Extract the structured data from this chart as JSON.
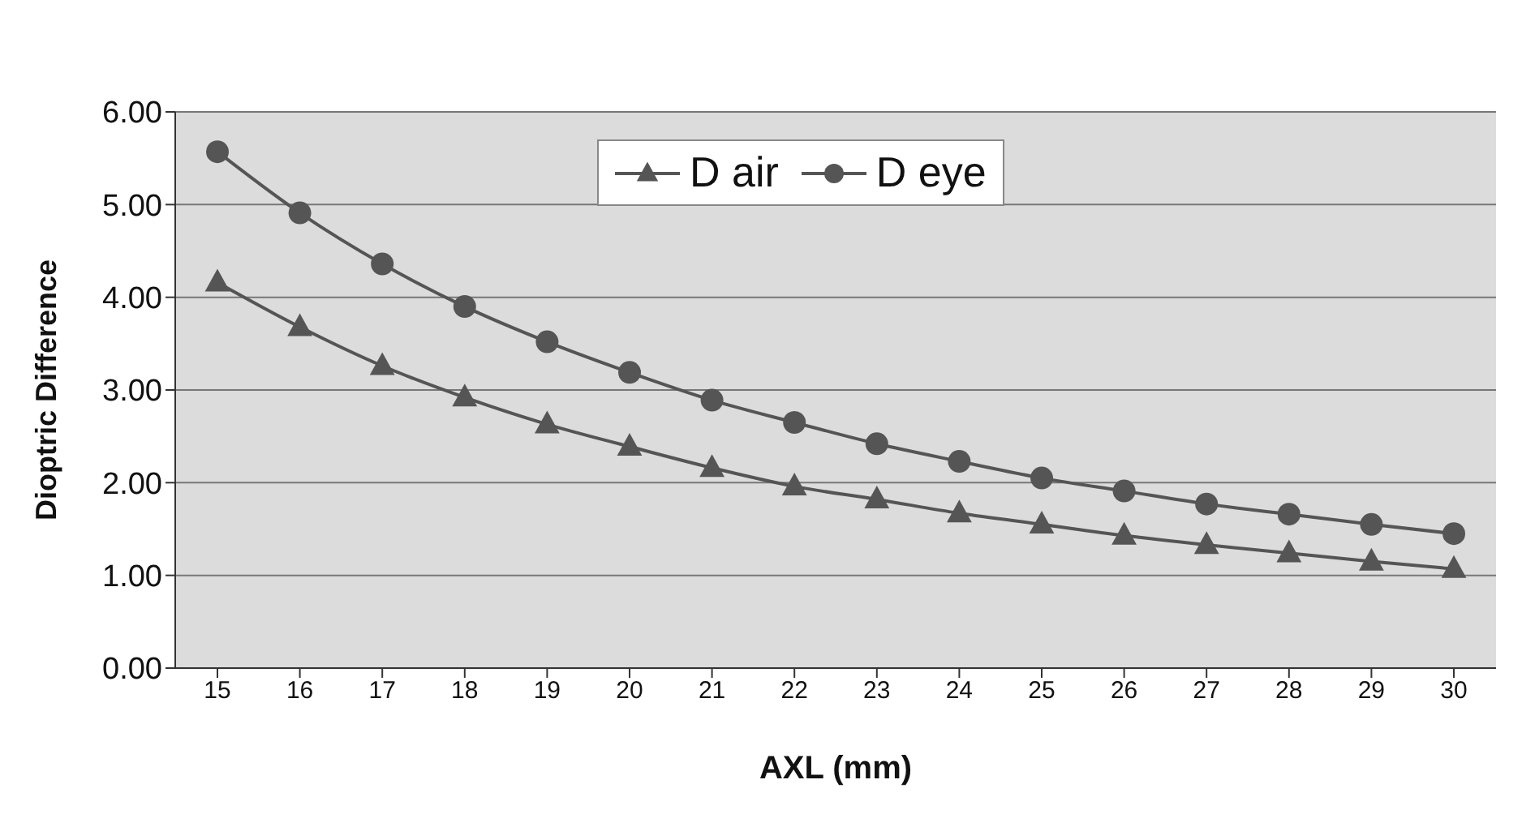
{
  "chart_data": {
    "type": "line",
    "xlabel": "AXL (mm)",
    "ylabel": "Dioptric Difference",
    "categories": [
      "15",
      "16",
      "17",
      "18",
      "19",
      "20",
      "21",
      "22",
      "23",
      "24",
      "25",
      "26",
      "27",
      "28",
      "29",
      "30"
    ],
    "series": [
      {
        "name": "D air",
        "color": "#555555",
        "marker": "triangle",
        "values": [
          4.16,
          3.68,
          3.26,
          2.92,
          2.63,
          2.39,
          2.16,
          1.96,
          1.82,
          1.67,
          1.55,
          1.43,
          1.33,
          1.24,
          1.15,
          1.07
        ]
      },
      {
        "name": "D eye",
        "color": "#555555",
        "marker": "circle",
        "values": [
          5.57,
          4.91,
          4.36,
          3.9,
          3.52,
          3.19,
          2.89,
          2.65,
          2.42,
          2.23,
          2.05,
          1.91,
          1.77,
          1.66,
          1.55,
          1.45
        ]
      }
    ],
    "ylim": [
      0,
      6
    ],
    "yticks": [
      {
        "value": 0,
        "label": "0.00"
      },
      {
        "value": 1,
        "label": "1.00"
      },
      {
        "value": 2,
        "label": "2.00"
      },
      {
        "value": 3,
        "label": "3.00"
      },
      {
        "value": 4,
        "label": "4.00"
      },
      {
        "value": 5,
        "label": "5.00"
      },
      {
        "value": 6,
        "label": "6.00"
      }
    ],
    "grid": "y",
    "legend": "top",
    "line_style": "solid"
  }
}
